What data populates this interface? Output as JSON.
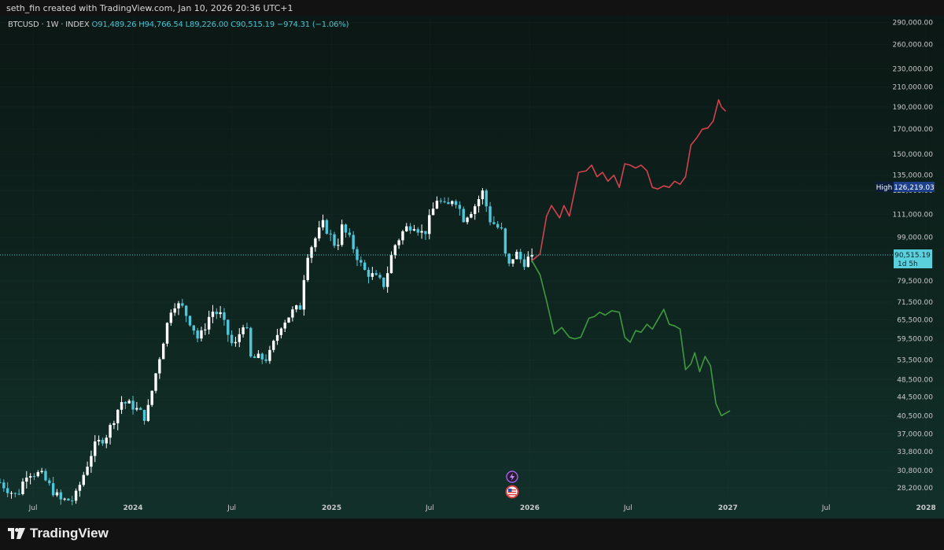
{
  "header": {
    "credit": "seth_fin created with TradingView.com, Jan 10, 2026 20:36 UTC+1"
  },
  "legend": {
    "symbol": "BTCUSD · 1W · INDEX",
    "ohlc": "O91,489.26  H94,766.54  L89,226.00  C90,515.19  −974.31 (−1.06%)"
  },
  "footer": {
    "brand": "TradingView"
  },
  "badges": {
    "high_label": "High",
    "high_value": "126,219.03",
    "price_value": "90,515.19",
    "countdown": "1d 5h"
  },
  "colors": {
    "candle_up": "#ffffff",
    "candle_down": "#4fc6da",
    "bullish_projection": "#d2424f",
    "bearish_projection": "#3f9a3f",
    "price_badge": "#5ad0dc",
    "high_badge": "#1c3f8a"
  },
  "icons": [
    "flash-event-icon",
    "us-flag-event-icon"
  ],
  "chart_data": {
    "type": "candlestick",
    "title": "",
    "y_scale": "log",
    "ylim": [
      26500,
      300000
    ],
    "x_range": [
      "2023-05-01",
      "2027-11-01"
    ],
    "y_ticks": [
      290000,
      260000,
      230000,
      210000,
      190000,
      170000,
      150000,
      135000,
      125000,
      111000,
      99000,
      79500,
      71500,
      65500,
      59500,
      53500,
      48500,
      44500,
      40500,
      37000,
      33800,
      30800,
      28200
    ],
    "y_tick_labels": [
      "290,000.00",
      "260,000.00",
      "230,000.00",
      "210,000.00",
      "190,000.00",
      "170,000.00",
      "150,000.00",
      "135,000.00",
      "125,000.00",
      "111,000.00",
      "99,000.00",
      "79,500.00",
      "71,500.00",
      "65,500.00",
      "59,500.00",
      "53,500.00",
      "48,500.00",
      "44,500.00",
      "40,500.00",
      "37,000.00",
      "33,800.00",
      "30,800.00",
      "28,200.00"
    ],
    "x_ticks": [
      {
        "date": "2023-07-01",
        "label": "Jul",
        "bold": false
      },
      {
        "date": "2024-01-01",
        "label": "2024",
        "bold": true
      },
      {
        "date": "2024-07-01",
        "label": "Jul",
        "bold": false
      },
      {
        "date": "2025-01-01",
        "label": "2025",
        "bold": true
      },
      {
        "date": "2025-07-01",
        "label": "Jul",
        "bold": false
      },
      {
        "date": "2026-01-01",
        "label": "2026",
        "bold": true
      },
      {
        "date": "2026-07-01",
        "label": "Jul",
        "bold": false
      },
      {
        "date": "2027-01-01",
        "label": "2027",
        "bold": true
      },
      {
        "date": "2027-07-01",
        "label": "Jul",
        "bold": false
      },
      {
        "date": "2028-01-01",
        "label": "2028",
        "bold": true
      }
    ],
    "current_price": 90515.19,
    "high": 126219.03,
    "price_path": [
      [
        "2023-05-01",
        29000
      ],
      [
        "2023-06-01",
        27000
      ],
      [
        "2023-06-20",
        30600
      ],
      [
        "2023-07-15",
        30200
      ],
      [
        "2023-08-20",
        26500
      ],
      [
        "2023-09-15",
        26600
      ],
      [
        "2023-10-20",
        34500
      ],
      [
        "2023-11-15",
        37000
      ],
      [
        "2023-12-10",
        43500
      ],
      [
        "2024-01-01",
        42500
      ],
      [
        "2024-01-25",
        40000
      ],
      [
        "2024-02-15",
        52000
      ],
      [
        "2024-03-01",
        62000
      ],
      [
        "2024-03-14",
        71500
      ],
      [
        "2024-04-01",
        69500
      ],
      [
        "2024-04-20",
        63500
      ],
      [
        "2024-05-01",
        59000
      ],
      [
        "2024-05-25",
        68500
      ],
      [
        "2024-06-10",
        67000
      ],
      [
        "2024-07-05",
        56500
      ],
      [
        "2024-07-25",
        66000
      ],
      [
        "2024-08-05",
        54000
      ],
      [
        "2024-09-06",
        54000
      ],
      [
        "2024-09-30",
        64000
      ],
      [
        "2024-10-20",
        68000
      ],
      [
        "2024-11-05",
        70000
      ],
      [
        "2024-11-15",
        90000
      ],
      [
        "2024-12-05",
        100000
      ],
      [
        "2024-12-17",
        106000
      ],
      [
        "2025-01-10",
        94000
      ],
      [
        "2025-01-20",
        104000
      ],
      [
        "2025-02-05",
        97000
      ],
      [
        "2025-02-28",
        84000
      ],
      [
        "2025-03-15",
        82000
      ],
      [
        "2025-04-08",
        78000
      ],
      [
        "2025-04-25",
        94000
      ],
      [
        "2025-05-15",
        103000
      ],
      [
        "2025-06-01",
        106000
      ],
      [
        "2025-06-20",
        100000
      ],
      [
        "2025-07-14",
        120000
      ],
      [
        "2025-08-01",
        114000
      ],
      [
        "2025-08-14",
        122000
      ],
      [
        "2025-09-01",
        109000
      ],
      [
        "2025-09-20",
        115000
      ],
      [
        "2025-10-06",
        124000
      ],
      [
        "2025-10-20",
        108000
      ],
      [
        "2025-11-10",
        102000
      ],
      [
        "2025-11-21",
        84000
      ],
      [
        "2025-12-05",
        92000
      ],
      [
        "2025-12-20",
        87000
      ],
      [
        "2026-01-05",
        90515
      ]
    ],
    "series": [
      {
        "name": "",
        "x": [
          "2026-01-05",
          "2026-01-20",
          "2026-02-01",
          "2026-02-10",
          "2026-02-25",
          "2026-03-05",
          "2026-03-15",
          "2026-04-01",
          "2026-04-15",
          "2026-04-25",
          "2026-05-05",
          "2026-05-15",
          "2026-05-25",
          "2026-06-05",
          "2026-06-15",
          "2026-06-25",
          "2026-07-05",
          "2026-07-15",
          "2026-07-25",
          "2026-08-05",
          "2026-08-15",
          "2026-08-25",
          "2026-09-05",
          "2026-09-15",
          "2026-09-25",
          "2026-10-05",
          "2026-10-15",
          "2026-10-25",
          "2026-11-05",
          "2026-11-15",
          "2026-11-25",
          "2026-12-05",
          "2026-12-15",
          "2026-12-20",
          "2026-12-28"
        ],
        "values": [
          88000,
          91000,
          110000,
          116000,
          109000,
          116000,
          110000,
          137000,
          138000,
          142000,
          134000,
          137000,
          131000,
          135000,
          127000,
          143000,
          142000,
          140000,
          142000,
          138000,
          127000,
          126000,
          128000,
          127000,
          131000,
          129000,
          134000,
          157000,
          163000,
          170000,
          171000,
          177000,
          197000,
          190000,
          186000
        ]
      },
      {
        "name": "",
        "x": [
          "2026-01-05",
          "2026-01-20",
          "2026-02-01",
          "2026-02-15",
          "2026-03-01",
          "2026-03-15",
          "2026-03-25",
          "2026-04-05",
          "2026-04-20",
          "2026-04-30",
          "2026-05-10",
          "2026-05-20",
          "2026-06-01",
          "2026-06-15",
          "2026-06-25",
          "2026-07-05",
          "2026-07-15",
          "2026-07-25",
          "2026-08-05",
          "2026-08-15",
          "2026-08-25",
          "2026-09-05",
          "2026-09-15",
          "2026-09-25",
          "2026-10-05",
          "2026-10-15",
          "2026-10-25",
          "2026-11-01",
          "2026-11-10",
          "2026-11-20",
          "2026-11-30",
          "2026-12-10",
          "2026-12-20",
          "2027-01-05"
        ],
        "values": [
          88000,
          82000,
          72000,
          61000,
          63000,
          60000,
          59500,
          60000,
          66000,
          66500,
          68000,
          67000,
          68500,
          68000,
          60000,
          58500,
          62000,
          61500,
          64000,
          62500,
          65500,
          69000,
          64000,
          63500,
          62500,
          51000,
          52500,
          55500,
          50500,
          54500,
          52000,
          43000,
          40500,
          41500
        ]
      }
    ]
  }
}
